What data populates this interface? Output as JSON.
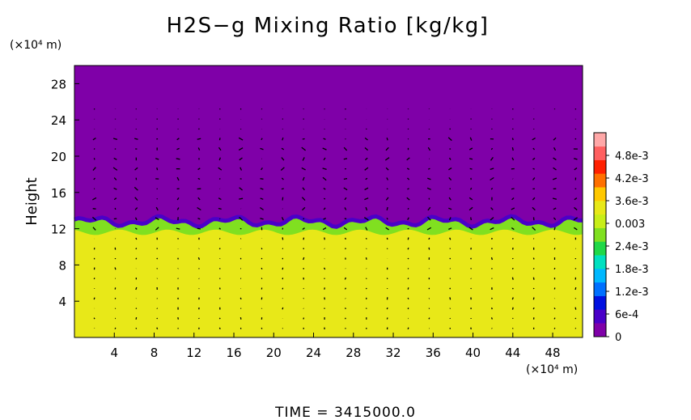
{
  "chart_data": {
    "type": "heatmap",
    "title": "H2S−g Mixing Ratio [kg/kg]",
    "x_unit_label": "(×10⁴ m)",
    "y_unit_label": "(×10⁴ m)",
    "ylabel": "Height",
    "xlabel": "",
    "xlim": [
      0,
      51
    ],
    "ylim": [
      0,
      30
    ],
    "x_ticks": [
      4,
      8,
      12,
      16,
      20,
      24,
      28,
      32,
      36,
      40,
      44,
      48
    ],
    "y_ticks": [
      4,
      8,
      12,
      16,
      20,
      24,
      28
    ],
    "colorbar": {
      "range": [
        0,
        0.0054
      ],
      "ticks": [
        {
          "value": 0,
          "label": "0"
        },
        {
          "value": 0.0006,
          "label": "6e-4"
        },
        {
          "value": 0.0012,
          "label": "1.2e-3"
        },
        {
          "value": 0.0018,
          "label": "1.8e-3"
        },
        {
          "value": 0.0024,
          "label": "2.4e-3"
        },
        {
          "value": 0.003,
          "label": "0.003"
        },
        {
          "value": 0.0036,
          "label": "3.6e-3"
        },
        {
          "value": 0.0042,
          "label": "4.2e-3"
        },
        {
          "value": 0.0048,
          "label": "4.8e-3"
        }
      ],
      "colors": [
        "#7f00a8",
        "#4a00c8",
        "#0010e0",
        "#0070ff",
        "#00b8ff",
        "#00e0c0",
        "#20d848",
        "#80e020",
        "#c8ee18",
        "#e8e818",
        "#ffc800",
        "#ff7000",
        "#ff2000",
        "#ff6060",
        "#ffa8a8"
      ]
    },
    "field": {
      "description": "mixing ratio vs height: upper layer ~0, interface near 12-13, lower layer ~3.6e-3",
      "upper_value": 0,
      "interface_height": 12.8,
      "lower_value": 0.0035,
      "lower_band_value": 0.0037
    },
    "vectors": "velocity arrows overlaid on the field",
    "footer": "TIME = 3415000.0"
  }
}
